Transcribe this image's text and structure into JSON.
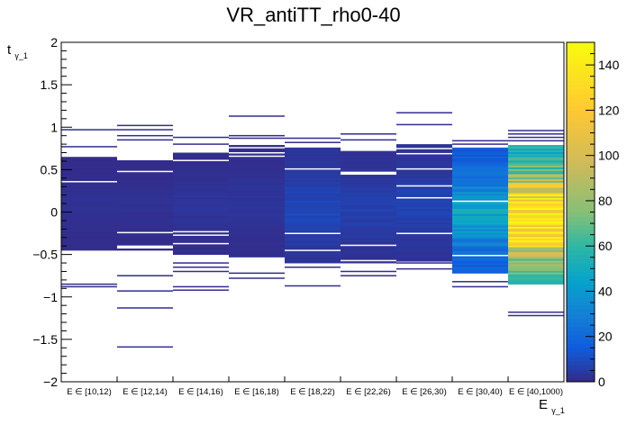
{
  "chart_data": {
    "type": "heatmap",
    "title": "VR_antiTT_rho0-40",
    "xlabel": {
      "main": "E",
      "sub": "γ_1"
    },
    "ylabel": {
      "main": "t",
      "sub": "γ_1"
    },
    "ylim": [
      -2,
      2
    ],
    "y_ticks": [
      -2,
      -1.5,
      -1,
      -0.5,
      0,
      0.5,
      1,
      1.5,
      2
    ],
    "y_tick_labels": [
      "−2",
      "−1.5",
      "−1",
      "−0.5",
      "0",
      "0.5",
      "1",
      "1.5",
      "2"
    ],
    "categories": [
      "E ∈ [10,12)",
      "E ∈ [12,14)",
      "E ∈ [14,16)",
      "E ∈ [16,18)",
      "E ∈ [18,22)",
      "E ∈ [22,26)",
      "E ∈ [26,30)",
      "E ∈ [30,40)",
      "E ∈ [40,1000)"
    ],
    "colorbar": {
      "min": 0,
      "max": 150,
      "ticks": [
        0,
        20,
        40,
        60,
        80,
        100,
        120,
        140
      ],
      "tick_labels": [
        "0",
        "20",
        "40",
        "60",
        "80",
        "100",
        "120",
        "140"
      ]
    },
    "columns": [
      {
        "category": "E ∈ [10,12)",
        "core": [
          -0.45,
          0.65
        ],
        "core_value": 2,
        "outliers": [
          0.97,
          0.77,
          -0.85,
          -0.88
        ]
      },
      {
        "category": "E ∈ [12,14)",
        "core": [
          -0.45,
          0.6
        ],
        "core_value": 2,
        "outliers": [
          1.02,
          0.97,
          0.9,
          0.85,
          -0.75,
          -0.93,
          -1.13,
          -1.59
        ]
      },
      {
        "category": "E ∈ [14,16)",
        "core": [
          -0.5,
          0.7
        ],
        "core_value": 3,
        "outliers": [
          0.88,
          0.8,
          -0.6,
          -0.65,
          -0.7,
          -0.88,
          -0.92
        ]
      },
      {
        "category": "E ∈ [16,18)",
        "core": [
          -0.55,
          0.78
        ],
        "core_value": 3,
        "outliers": [
          1.13,
          0.9,
          0.87,
          -0.72,
          -0.78
        ]
      },
      {
        "category": "E ∈ [18,22)",
        "core": [
          -0.6,
          0.75
        ],
        "core_value": 8,
        "outliers": [
          0.87,
          0.82,
          -0.65,
          -0.87
        ]
      },
      {
        "category": "E ∈ [22,26)",
        "core": [
          -0.6,
          0.72
        ],
        "core_value": 6,
        "outliers": [
          0.92,
          0.85,
          -0.7,
          -0.75
        ]
      },
      {
        "category": "E ∈ [26,30)",
        "core": [
          -0.58,
          0.8
        ],
        "core_value": 7,
        "outliers": [
          1.17,
          1.03,
          -0.6,
          -0.67
        ]
      },
      {
        "category": "E ∈ [30,40)",
        "core": [
          -0.72,
          0.75
        ],
        "core_value": 40,
        "outliers": [
          0.84,
          0.8,
          -0.82,
          -0.88
        ]
      },
      {
        "category": "E ∈ [40,1000)",
        "core": [
          -0.85,
          0.78
        ],
        "core_value": 140,
        "outliers": [
          0.96,
          0.92,
          0.88,
          0.84,
          -1.18,
          -1.22
        ]
      }
    ]
  }
}
